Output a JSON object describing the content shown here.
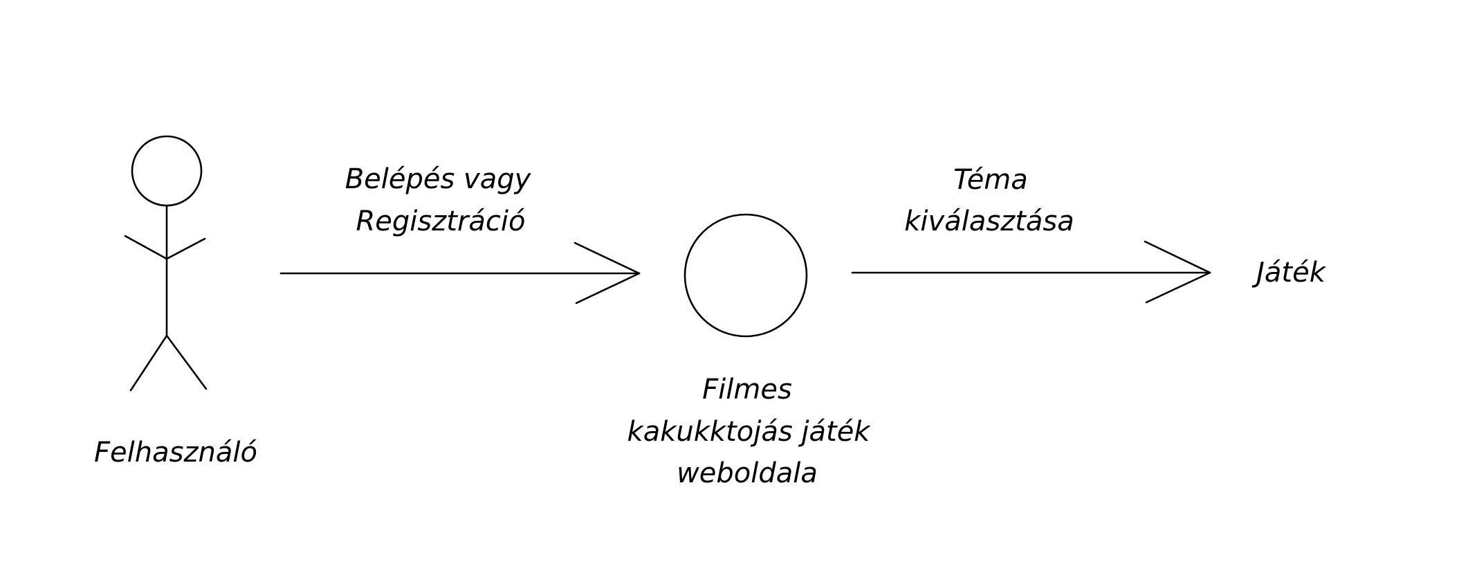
{
  "diagram": {
    "actor": {
      "label": "Felhasználó"
    },
    "step1": {
      "line1": "Belépés vagy",
      "line2": "Regisztráció"
    },
    "website": {
      "line1": "Filmes",
      "line2": "kakukktojás játék",
      "line3": "weboldala"
    },
    "step2": {
      "line1": "Téma",
      "line2": "kiválasztása"
    },
    "game": {
      "label": "Játék"
    }
  }
}
